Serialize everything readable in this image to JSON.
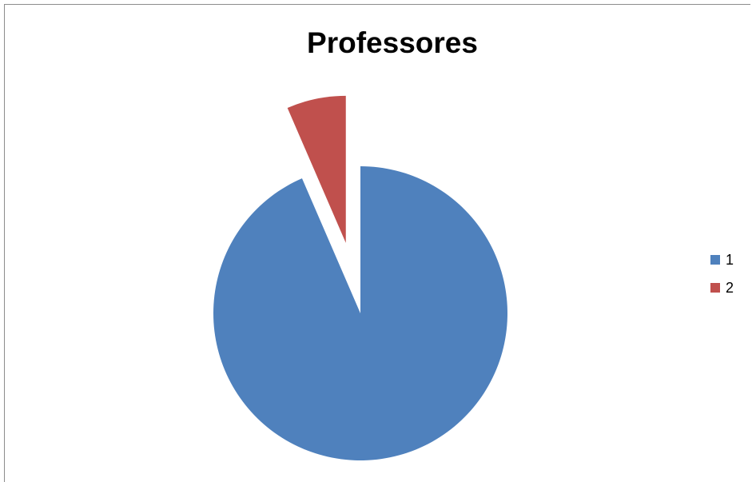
{
  "chart_data": {
    "type": "pie",
    "title": "Professores",
    "categories": [
      "1",
      "2"
    ],
    "values": [
      93.5,
      6.5
    ],
    "colors": [
      "#4f81bd",
      "#c0504d"
    ],
    "exploded": [
      false,
      true
    ],
    "legend_position": "right"
  }
}
